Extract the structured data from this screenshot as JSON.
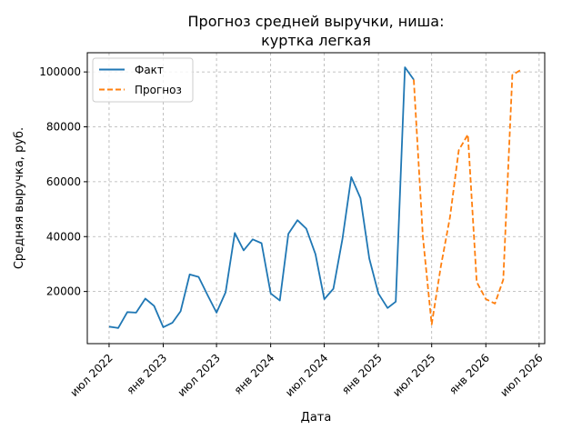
{
  "chart_data": {
    "type": "line",
    "title_line1": "Прогноз средней выручки, ниша:",
    "title_line2": "куртка легкая",
    "xlabel": "Дата",
    "ylabel": "Средняя выручка, руб.",
    "x_ticks": [
      "июл 2022",
      "янв 2023",
      "июл 2023",
      "янв 2024",
      "июл 2024",
      "янв 2025",
      "июл 2025",
      "янв 2026",
      "июл 2026"
    ],
    "y_ticks": [
      "20000",
      "40000",
      "60000",
      "80000",
      "100000"
    ],
    "y_tick_values": [
      20000,
      40000,
      60000,
      80000,
      100000
    ],
    "ylim": [
      1000,
      107000
    ],
    "xlim": [
      "2022-04-18",
      "2026-07-20"
    ],
    "grid": true,
    "legend_position": "top-left",
    "colors": {
      "fact": "#1f77b4",
      "forecast": "#ff7f0e",
      "grid": "#b0b0b0"
    },
    "series": [
      {
        "name": "Факт",
        "style": "solid",
        "points": [
          [
            "2022-07-01",
            7200
          ],
          [
            "2022-08-01",
            6700
          ],
          [
            "2022-09-01",
            12500
          ],
          [
            "2022-10-01",
            12300
          ],
          [
            "2022-11-01",
            17400
          ],
          [
            "2022-12-01",
            14700
          ],
          [
            "2023-01-01",
            7000
          ],
          [
            "2023-02-01",
            8600
          ],
          [
            "2023-03-01",
            12800
          ],
          [
            "2023-04-01",
            26200
          ],
          [
            "2023-05-01",
            25300
          ],
          [
            "2023-06-01",
            18600
          ],
          [
            "2023-07-01",
            12300
          ],
          [
            "2023-08-01",
            19700
          ],
          [
            "2023-09-01",
            41300
          ],
          [
            "2023-10-01",
            35000
          ],
          [
            "2023-11-01",
            39000
          ],
          [
            "2023-12-01",
            37600
          ],
          [
            "2024-01-01",
            19300
          ],
          [
            "2024-02-01",
            16700
          ],
          [
            "2024-03-01",
            41000
          ],
          [
            "2024-04-01",
            46000
          ],
          [
            "2024-05-01",
            42900
          ],
          [
            "2024-06-01",
            33600
          ],
          [
            "2024-07-01",
            17200
          ],
          [
            "2024-08-01",
            21000
          ],
          [
            "2024-09-01",
            39200
          ],
          [
            "2024-10-01",
            61700
          ],
          [
            "2024-11-01",
            54000
          ],
          [
            "2024-12-01",
            32000
          ],
          [
            "2025-01-01",
            19300
          ],
          [
            "2025-02-01",
            14000
          ],
          [
            "2025-03-01",
            16300
          ],
          [
            "2025-04-01",
            101700
          ],
          [
            "2025-05-01",
            97200
          ]
        ]
      },
      {
        "name": "Прогноз",
        "style": "dashed",
        "points": [
          [
            "2025-05-01",
            97200
          ],
          [
            "2025-06-01",
            40000
          ],
          [
            "2025-07-01",
            8000
          ],
          [
            "2025-08-01",
            29000
          ],
          [
            "2025-09-01",
            47000
          ],
          [
            "2025-10-01",
            71500
          ],
          [
            "2025-11-01",
            77200
          ],
          [
            "2025-12-01",
            23500
          ],
          [
            "2026-01-01",
            17200
          ],
          [
            "2026-02-01",
            15600
          ],
          [
            "2026-03-01",
            24300
          ],
          [
            "2026-04-01",
            98900
          ],
          [
            "2026-05-01",
            100800
          ]
        ]
      }
    ]
  }
}
